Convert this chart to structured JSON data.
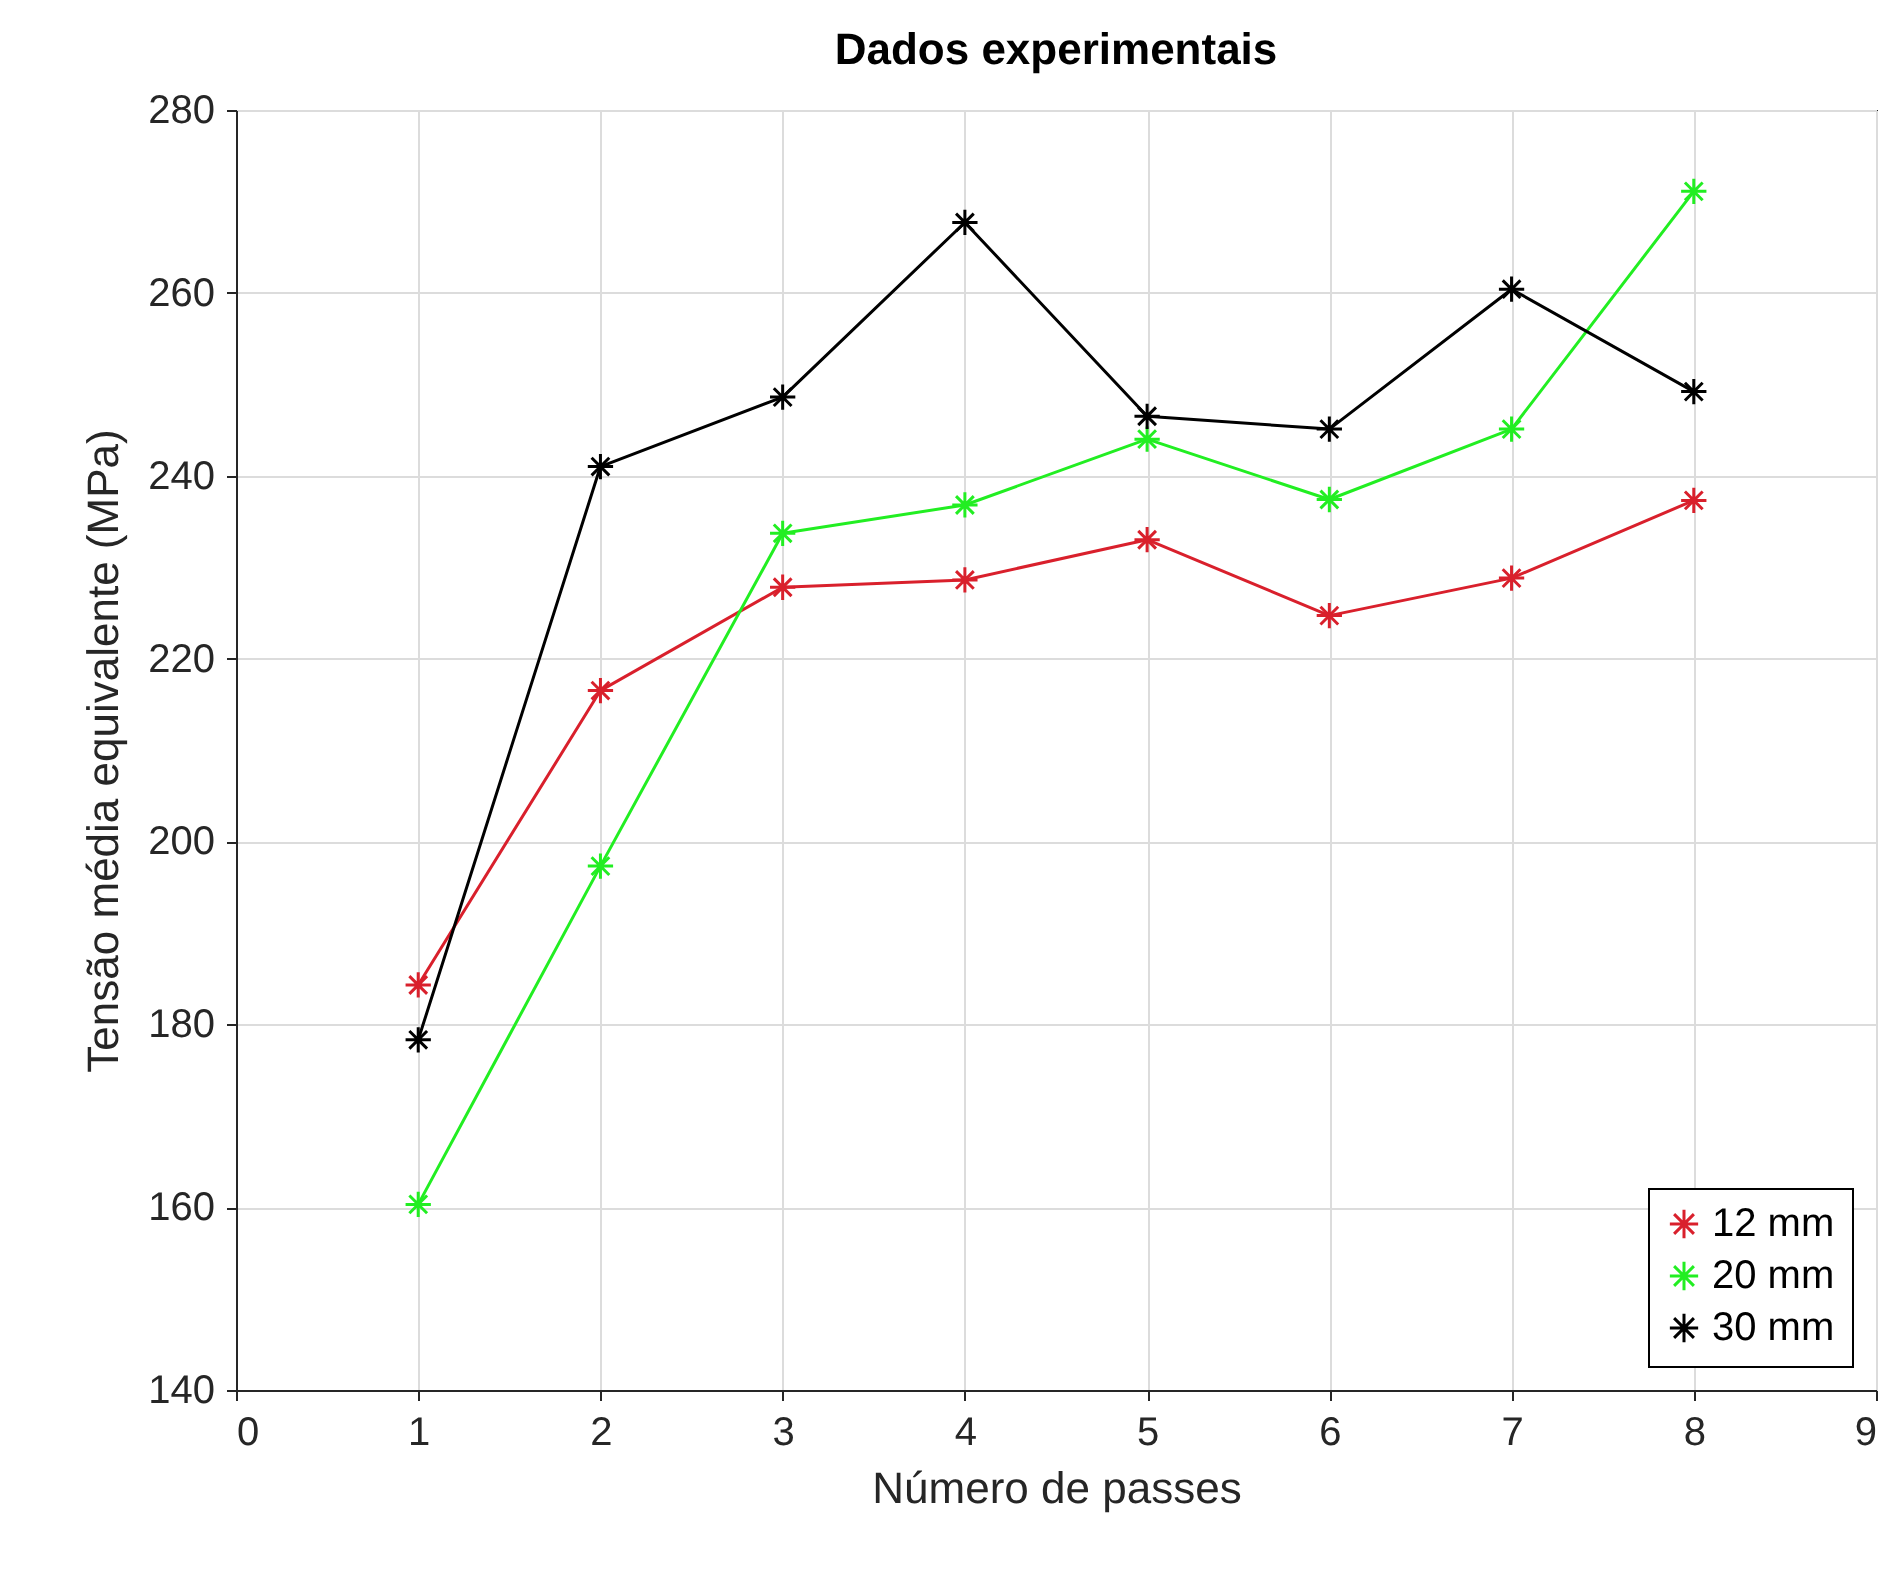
{
  "chart_data": {
    "type": "line",
    "title": "Dados experimentais",
    "xlabel": "Número de passes",
    "ylabel": "Tensão média equivalente (MPa)",
    "x": [
      1,
      2,
      3,
      4,
      5,
      6,
      7,
      8
    ],
    "series": [
      {
        "name": "12 mm",
        "color": "#d9202c",
        "values": [
          184.3,
          216.5,
          227.8,
          228.6,
          233,
          224.7,
          228.8,
          237.3
        ]
      },
      {
        "name": "20 mm",
        "color": "#22ee22",
        "values": [
          160.3,
          197.3,
          233.7,
          236.8,
          244,
          237.4,
          245.1,
          271.1
        ]
      },
      {
        "name": "30 mm",
        "color": "#000000",
        "values": [
          178.3,
          241,
          248.6,
          267.7,
          246.5,
          245.1,
          260.4,
          249.2
        ]
      }
    ],
    "xlim": [
      0,
      9
    ],
    "xticks": [
      0,
      1,
      2,
      3,
      4,
      5,
      6,
      7,
      8,
      9
    ],
    "ylim": [
      140,
      280
    ],
    "yticks": [
      140,
      160,
      180,
      200,
      220,
      240,
      260,
      280
    ],
    "grid": true,
    "legend": "bottom right",
    "marker": "cross",
    "line_style": "solid"
  }
}
